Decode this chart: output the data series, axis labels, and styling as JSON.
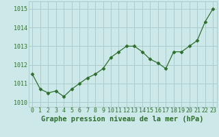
{
  "x": [
    0,
    1,
    2,
    3,
    4,
    5,
    6,
    7,
    8,
    9,
    10,
    11,
    12,
    13,
    14,
    15,
    16,
    17,
    18,
    19,
    20,
    21,
    22,
    23
  ],
  "y": [
    1011.5,
    1010.7,
    1010.5,
    1010.6,
    1010.3,
    1010.7,
    1011.0,
    1011.3,
    1011.5,
    1011.8,
    1012.4,
    1012.7,
    1013.0,
    1013.0,
    1012.7,
    1012.3,
    1012.1,
    1011.8,
    1012.7,
    1012.7,
    1013.0,
    1013.3,
    1014.3,
    1015.0
  ],
  "line_color": "#2d6e2d",
  "marker_color": "#2d6e2d",
  "bg_color": "#cce8e8",
  "grid_color": "#aacccc",
  "xlabel": "Graphe pression niveau de la mer (hPa)",
  "xlabel_color": "#2d6e2d",
  "tick_color": "#2d6e2d",
  "ylim": [
    1009.75,
    1015.4
  ],
  "yticks": [
    1010,
    1011,
    1012,
    1013,
    1014,
    1015
  ],
  "xticks": [
    0,
    1,
    2,
    3,
    4,
    5,
    6,
    7,
    8,
    9,
    10,
    11,
    12,
    13,
    14,
    15,
    16,
    17,
    18,
    19,
    20,
    21,
    22,
    23
  ],
  "xlabel_fontsize": 7.5,
  "tick_fontsize": 6.0
}
